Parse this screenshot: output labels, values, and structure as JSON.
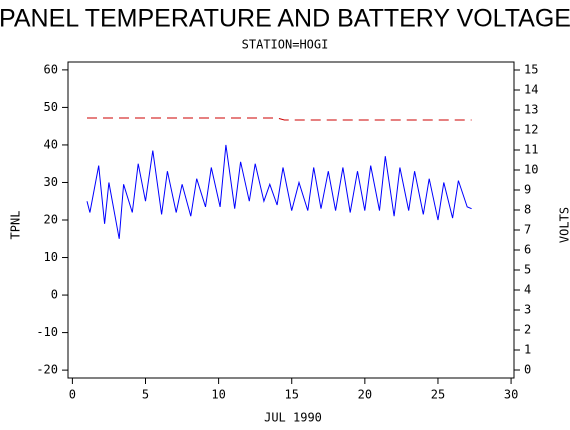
{
  "chart_data": {
    "type": "line",
    "title": "PANEL TEMPERATURE AND BATTERY VOLTAGE",
    "subtitle": "STATION=HOGI",
    "x_label": "JUL 1990",
    "y_label": "TPNL",
    "y2_label": "VOLTS",
    "xlim": [
      -0.3,
      30.2
    ],
    "xticks": [
      0,
      5,
      10,
      15,
      20,
      25,
      30
    ],
    "ylim": [
      -22.1,
      62.1
    ],
    "yticks": [
      -20,
      -10,
      0,
      10,
      20,
      30,
      40,
      50,
      60
    ],
    "y2lim": [
      -0.4,
      15.4
    ],
    "y2ticks": [
      0,
      1,
      2,
      3,
      4,
      5,
      6,
      7,
      8,
      9,
      10,
      11,
      12,
      13,
      14,
      15
    ],
    "series": [
      {
        "name": "TPNL",
        "color": "#0000ff",
        "dashed": false,
        "x": [
          1,
          1.2,
          1.8,
          2.2,
          2.5,
          3.2,
          3.5,
          4.1,
          4.5,
          5.0,
          5.5,
          6.1,
          6.5,
          7.1,
          7.5,
          8.1,
          8.5,
          9.1,
          9.5,
          10.1,
          10.5,
          11.1,
          11.5,
          12.1,
          12.5,
          13.1,
          13.5,
          14.0,
          14.4,
          15.0,
          15.5,
          16.1,
          16.5,
          17.0,
          17.5,
          18.0,
          18.5,
          19.0,
          19.5,
          20.0,
          20.4,
          21.0,
          21.4,
          22.0,
          22.4,
          23.0,
          23.4,
          24.0,
          24.4,
          25.0,
          25.4,
          26.0,
          26.4,
          27.0,
          27.3
        ],
        "values": [
          25,
          22,
          34.5,
          19,
          30,
          15,
          29.5,
          22,
          35,
          25,
          38.5,
          21.5,
          33,
          22,
          29.5,
          21,
          31,
          23.5,
          34,
          23.5,
          40,
          23,
          35.5,
          25,
          35,
          25,
          29.5,
          24,
          34,
          22.5,
          30,
          22.5,
          34,
          23,
          33,
          22.5,
          34,
          22,
          33,
          22.5,
          34.5,
          22.5,
          37,
          21,
          34,
          22.5,
          33,
          21.5,
          31,
          20,
          30,
          20.5,
          30.5,
          23.5,
          23
        ]
      },
      {
        "name": "VOLTS",
        "color": "#cc0000",
        "dashed": true,
        "axis": "y2",
        "x": [
          1,
          14,
          14.5,
          27.3
        ],
        "values": [
          12.6,
          12.6,
          12.5,
          12.5
        ]
      }
    ]
  }
}
